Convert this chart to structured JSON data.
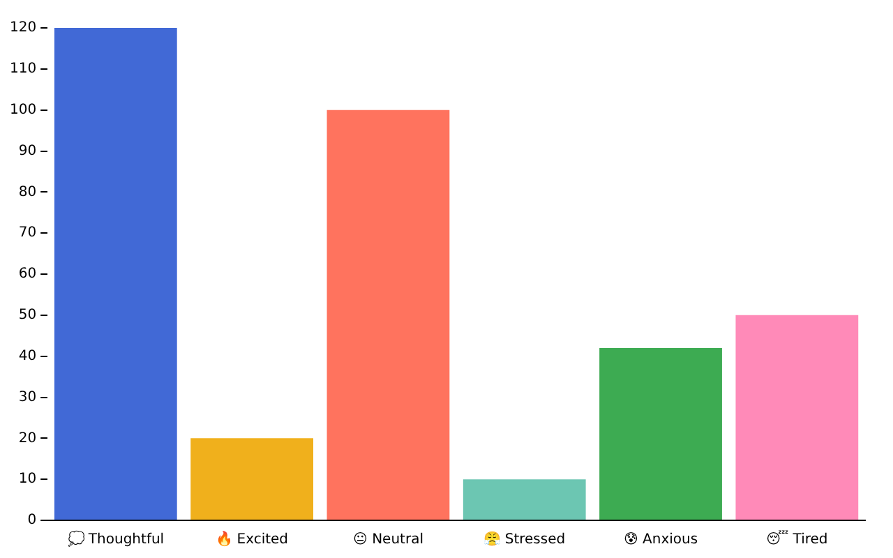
{
  "chart_data": {
    "type": "bar",
    "categories": [
      "💭 Thoughtful",
      "🔥 Excited",
      "😐 Neutral",
      "😤 Stressed",
      "😰 Anxious",
      "😴 Tired"
    ],
    "values": [
      120,
      20,
      100,
      10,
      42,
      50
    ],
    "colors": [
      "#4169d6",
      "#f0b01c",
      "#ff735e",
      "#6cc6b2",
      "#3dab52",
      "#ff8ab8"
    ],
    "ylim": [
      0,
      120
    ],
    "yticks": [
      0,
      10,
      20,
      30,
      40,
      50,
      60,
      70,
      80,
      90,
      100,
      110,
      120
    ],
    "grid": false,
    "legend": false
  }
}
